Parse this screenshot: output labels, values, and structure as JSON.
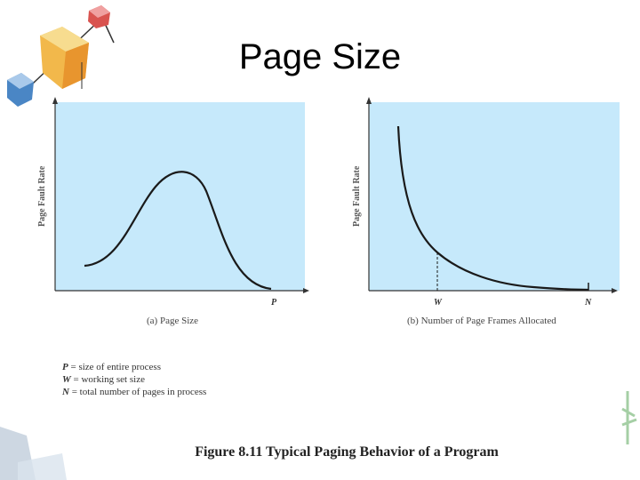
{
  "slide": {
    "title": "Page Size"
  },
  "panel_a": {
    "ylabel": "Page Fault Rate",
    "x_tick": "P",
    "caption": "(a) Page Size"
  },
  "panel_b": {
    "ylabel": "Page Fault Rate",
    "x_tick_w": "W",
    "x_tick_n": "N",
    "caption": "(b) Number of Page Frames Allocated"
  },
  "legend": [
    {
      "var": "P",
      "text": " = size of entire process"
    },
    {
      "var": "W",
      "text": " = working set size"
    },
    {
      "var": "N",
      "text": " = total number of pages in process"
    }
  ],
  "figure_caption": "Figure 8.11  Typical Paging Behavior of a Program",
  "colors": {
    "plot_bg": "#c6e9fb",
    "curve": "#1a1a1a"
  }
}
